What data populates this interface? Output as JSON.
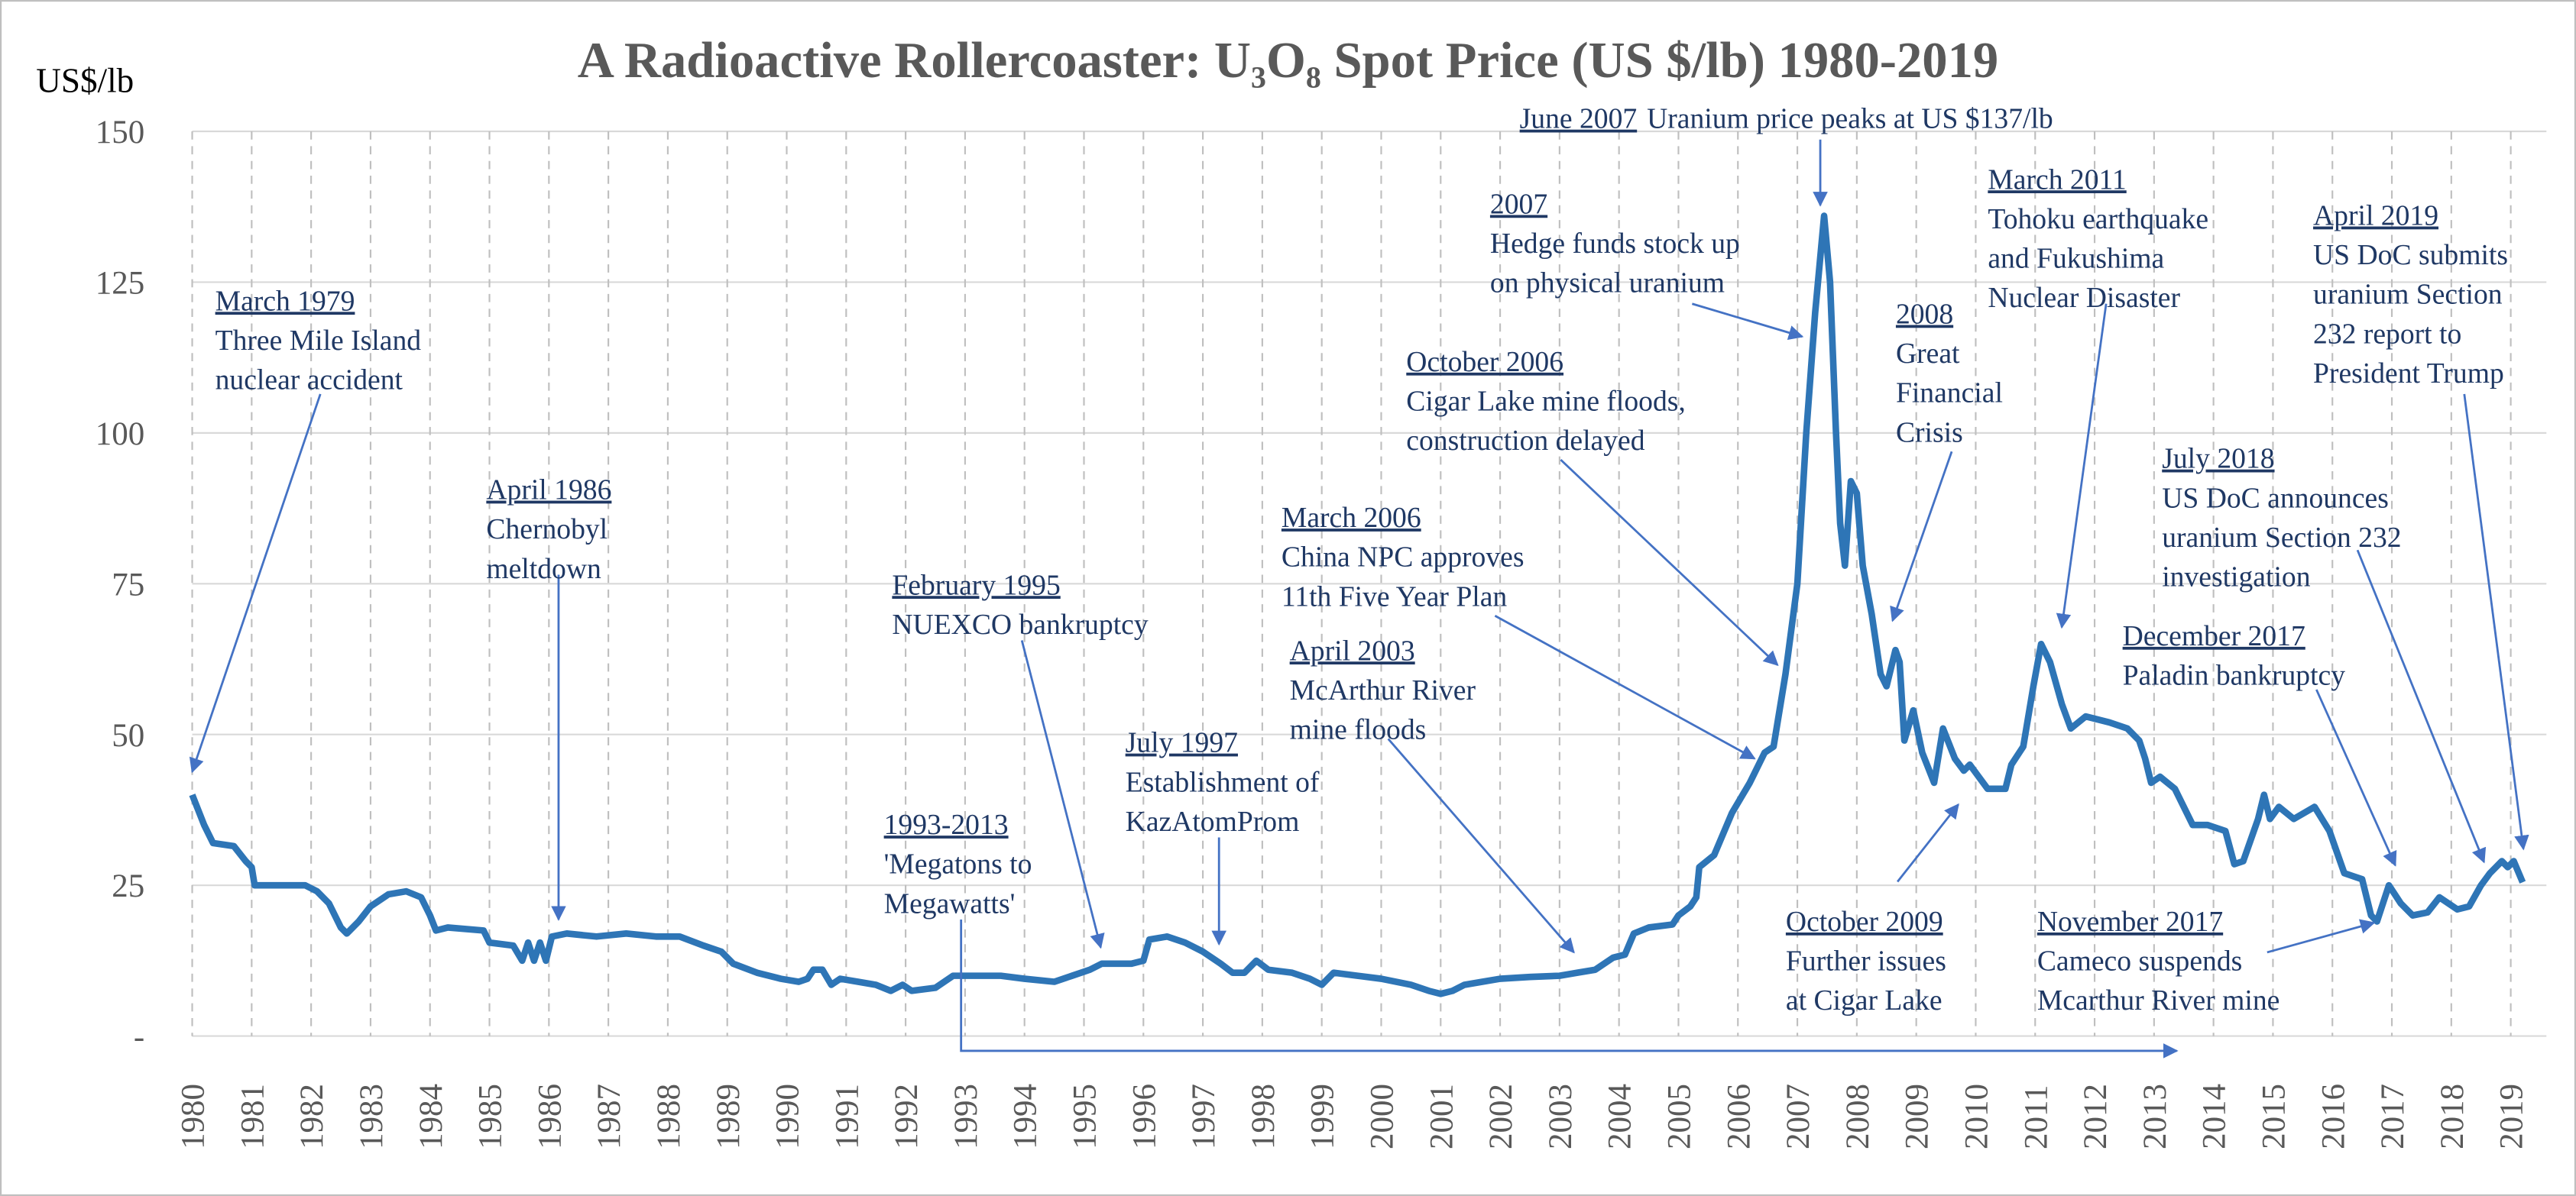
{
  "chart_data": {
    "type": "line",
    "title": "A Radioactive Rollercoaster: U₃O₈ Spot Price (US $/lb) 1980-2019",
    "y_label": "US$/lb",
    "color": "#2e75b6",
    "grid": true,
    "xlim": [
      1980,
      2019.6
    ],
    "ylim": [
      0,
      150
    ],
    "yticks": [
      {
        "value": 0,
        "label": "-"
      },
      25,
      50,
      75,
      100,
      125,
      150
    ],
    "xticks": [
      1980,
      1981,
      1982,
      1983,
      1984,
      1985,
      1986,
      1987,
      1988,
      1989,
      1990,
      1991,
      1992,
      1993,
      1994,
      1995,
      1996,
      1997,
      1998,
      1999,
      2000,
      2001,
      2002,
      2003,
      2004,
      2005,
      2006,
      2007,
      2008,
      2009,
      2010,
      2011,
      2012,
      2013,
      2014,
      2015,
      2016,
      2017,
      2018,
      2019
    ],
    "x": [
      1980.0,
      1980.2,
      1980.35,
      1980.7,
      1980.9,
      1981.0,
      1981.05,
      1981.9,
      1982.1,
      1982.3,
      1982.5,
      1982.6,
      1982.8,
      1983.0,
      1983.3,
      1983.6,
      1983.85,
      1984.0,
      1984.1,
      1984.3,
      1984.9,
      1985.0,
      1985.4,
      1985.55,
      1985.65,
      1985.75,
      1985.85,
      1985.95,
      1986.05,
      1986.3,
      1986.8,
      1987.3,
      1987.8,
      1988.2,
      1988.6,
      1988.9,
      1989.1,
      1989.5,
      1989.9,
      1990.2,
      1990.35,
      1990.45,
      1990.6,
      1990.75,
      1990.9,
      1991.2,
      1991.5,
      1991.75,
      1991.95,
      1992.1,
      1992.5,
      1992.8,
      1993.2,
      1993.6,
      1994.0,
      1994.5,
      1994.8,
      1995.1,
      1995.3,
      1995.8,
      1996.0,
      1996.1,
      1996.4,
      1996.7,
      1997.0,
      1997.3,
      1997.5,
      1997.7,
      1997.9,
      1998.1,
      1998.5,
      1998.8,
      1999.0,
      1999.2,
      1999.6,
      2000.0,
      2000.5,
      2000.8,
      2001.0,
      2001.2,
      2001.4,
      2001.7,
      2002.0,
      2002.5,
      2003.0,
      2003.3,
      2003.6,
      2003.9,
      2004.1,
      2004.25,
      2004.5,
      2004.9,
      2005.0,
      2005.2,
      2005.3,
      2005.35,
      2005.6,
      2005.9,
      2006.2,
      2006.45,
      2006.6,
      2006.8,
      2007.0,
      2007.15,
      2007.3,
      2007.45,
      2007.55,
      2007.65,
      2007.72,
      2007.8,
      2007.9,
      2008.0,
      2008.1,
      2008.25,
      2008.4,
      2008.5,
      2008.65,
      2008.72,
      2008.8,
      2008.95,
      2009.1,
      2009.3,
      2009.45,
      2009.65,
      2009.8,
      2009.9,
      2010.2,
      2010.5,
      2010.6,
      2010.8,
      2010.97,
      2011.1,
      2011.25,
      2011.45,
      2011.6,
      2011.85,
      2012.25,
      2012.55,
      2012.75,
      2012.85,
      2012.95,
      2013.1,
      2013.35,
      2013.65,
      2013.9,
      2014.2,
      2014.35,
      2014.5,
      2014.75,
      2014.85,
      2014.95,
      2015.1,
      2015.35,
      2015.7,
      2015.95,
      2016.2,
      2016.5,
      2016.65,
      2016.75,
      2016.95,
      2017.15,
      2017.35,
      2017.6,
      2017.8,
      2018.1,
      2018.3,
      2018.5,
      2018.65,
      2018.85,
      2018.95,
      2019.05,
      2019.2
    ],
    "values": [
      40,
      35,
      32,
      31.5,
      29,
      28,
      25,
      25,
      24,
      22,
      18,
      17,
      19,
      21.5,
      23.5,
      24,
      23,
      20,
      17.5,
      18,
      17.5,
      15.5,
      15,
      12.5,
      15.5,
      12.5,
      15.5,
      12.5,
      16.5,
      17,
      16.5,
      17,
      16.5,
      16.5,
      15,
      14,
      12,
      10.5,
      9.5,
      9,
      9.5,
      11,
      11,
      8.5,
      9.5,
      9,
      8.5,
      7.5,
      8.5,
      7.5,
      8,
      10,
      10,
      10,
      9.5,
      9,
      10,
      11,
      12,
      12,
      12.5,
      16,
      16.5,
      15.5,
      14,
      12,
      10.5,
      10.5,
      12.5,
      11,
      10.5,
      9.5,
      8.5,
      10.5,
      10,
      9.5,
      8.5,
      7.5,
      7,
      7.5,
      8.5,
      9,
      9.5,
      9.8,
      10,
      10.5,
      11,
      13,
      13.5,
      17,
      18,
      18.5,
      20,
      21.5,
      23,
      28,
      30,
      37,
      42,
      47,
      48,
      60,
      75,
      100,
      120,
      136,
      125,
      100,
      85,
      78,
      92,
      90,
      78,
      70,
      60,
      58,
      64,
      62,
      49,
      54,
      47,
      42,
      51,
      46,
      44,
      45,
      41,
      41,
      45,
      48,
      58,
      65,
      62,
      55,
      51,
      53,
      52,
      51,
      49,
      46,
      42,
      43,
      41,
      35,
      35,
      34,
      28.5,
      29,
      36,
      40,
      36,
      38,
      36,
      38,
      34,
      27,
      26,
      20,
      19,
      25,
      22,
      20,
      20.5,
      23,
      21,
      21.5,
      25,
      27,
      29,
      28,
      29,
      25.5
    ],
    "annotations": [
      {
        "date": "March 1979",
        "lines": [
          "Three Mile Island",
          "nuclear accident"
        ]
      },
      {
        "date": "April 1986",
        "lines": [
          "Chernobyl",
          "meltdown"
        ]
      },
      {
        "date": "February 1995",
        "lines": [
          "NUEXCO bankruptcy"
        ]
      },
      {
        "date": "1993-2013",
        "lines": [
          "'Megatons to",
          "Megawatts'"
        ]
      },
      {
        "date": "July 1997",
        "lines": [
          "Establishment of",
          "KazAtomProm"
        ]
      },
      {
        "date": "April 2003",
        "lines": [
          "McArthur River",
          "mine floods"
        ]
      },
      {
        "date": "March 2006",
        "lines": [
          "China NPC approves",
          "11th Five Year Plan"
        ]
      },
      {
        "date": "October 2006",
        "lines": [
          "Cigar Lake mine floods,",
          "construction delayed"
        ]
      },
      {
        "date": "2007",
        "lines": [
          "Hedge funds stock up",
          "on physical uranium"
        ]
      },
      {
        "date": "June 2007",
        "lines": [
          "Uranium price peaks at US $137/lb"
        ]
      },
      {
        "date": "2008",
        "lines": [
          "Great",
          "Financial",
          "Crisis"
        ]
      },
      {
        "date": "March 2011",
        "lines": [
          "Tohoku earthquake",
          "and Fukushima",
          "Nuclear Disaster"
        ]
      },
      {
        "date": "October 2009",
        "lines": [
          "Further issues",
          "at Cigar Lake"
        ]
      },
      {
        "date": "April 2019",
        "lines": [
          "US DoC submits",
          "uranium Section",
          "232 report to",
          "President Trump"
        ]
      },
      {
        "date": "July 2018",
        "lines": [
          "US DoC announces",
          "uranium Section 232",
          "investigation"
        ]
      },
      {
        "date": "December 2017",
        "lines": [
          "Paladin bankruptcy"
        ]
      },
      {
        "date": "November 2017",
        "lines": [
          "Cameco suspends",
          "Mcarthur River mine"
        ]
      }
    ]
  }
}
